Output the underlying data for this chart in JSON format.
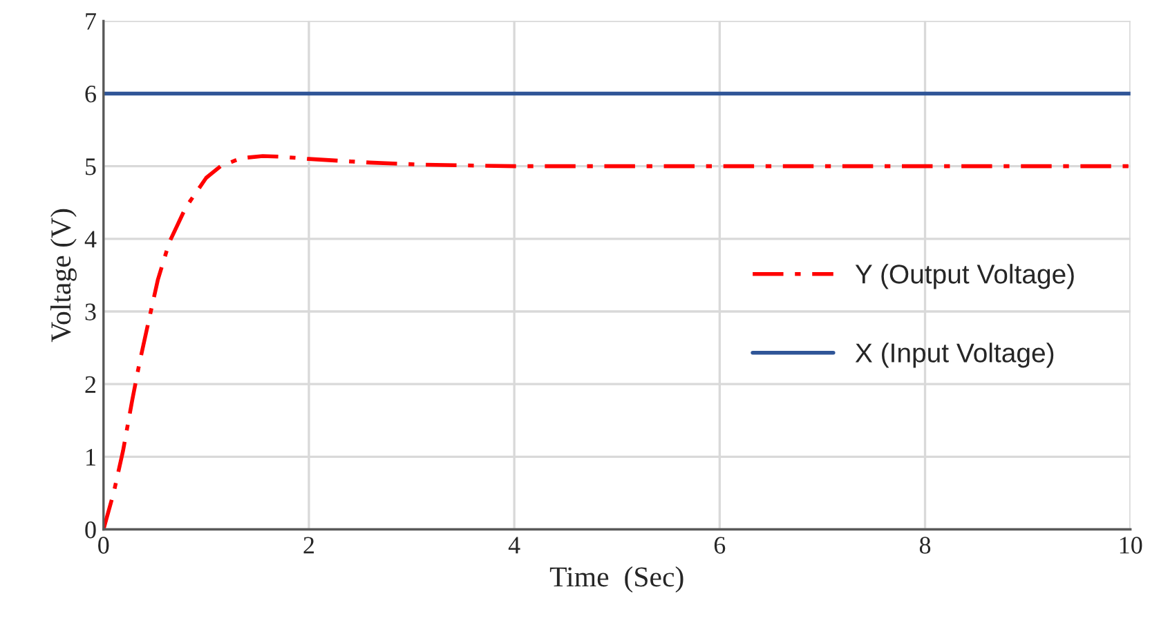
{
  "chart_data": {
    "type": "line",
    "xlabel": "Time  (Sec)",
    "ylabel": "Voltage (V)",
    "xlim": [
      0,
      10
    ],
    "ylim": [
      0,
      7
    ],
    "xticks": [
      0,
      2,
      4,
      6,
      8,
      10
    ],
    "yticks": [
      0,
      1,
      2,
      3,
      4,
      5,
      6,
      7
    ],
    "grid": true,
    "legend": "right",
    "series": [
      {
        "name": "Y (Output Voltage)",
        "color": "#ff0000",
        "line_style": "dashdot",
        "x": [
          0,
          0.1,
          0.19,
          0.28,
          0.35,
          0.44,
          0.53,
          0.64,
          0.8,
          1.0,
          1.14,
          1.34,
          1.55,
          1.73,
          2.0,
          2.59,
          3.13,
          4,
          6,
          8,
          10
        ],
        "values": [
          0,
          0.51,
          1.08,
          1.78,
          2.29,
          2.87,
          3.44,
          3.95,
          4.43,
          4.84,
          5.0,
          5.11,
          5.14,
          5.13,
          5.1,
          5.05,
          5.02,
          5.0,
          5.0,
          5.0,
          5.0
        ]
      },
      {
        "name": "X (Input Voltage)",
        "color": "#2f5597",
        "line_style": "solid",
        "x": [
          0,
          10
        ],
        "values": [
          6,
          6
        ]
      }
    ]
  }
}
